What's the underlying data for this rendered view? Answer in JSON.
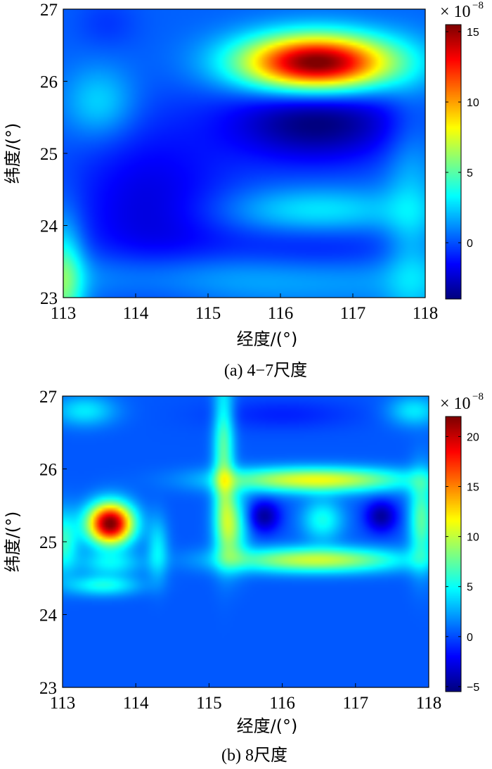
{
  "chart_data": [
    {
      "type": "heatmap",
      "caption": "(a) 4−7尺度",
      "xlabel": "经度/(°)",
      "ylabel": "纬度/(°)",
      "xlim": [
        113,
        118
      ],
      "ylim": [
        23,
        27
      ],
      "xticks": [
        "113",
        "114",
        "115",
        "116",
        "117",
        "118"
      ],
      "yticks": [
        "23",
        "24",
        "25",
        "26",
        "27"
      ],
      "colorbar": {
        "range": [
          -4,
          15.5
        ],
        "ticks": [
          "0",
          "5",
          "10",
          "15"
        ],
        "multiplier_base": "× 10",
        "multiplier_exp": "−8"
      },
      "features": [
        {
          "lon": 116.5,
          "lat": 26.25,
          "sx": 0.75,
          "sy": 0.28,
          "value": 16
        },
        {
          "lon": 116.5,
          "lat": 25.45,
          "sx": 0.85,
          "sy": 0.4,
          "value": -4.5
        },
        {
          "lon": 113.5,
          "lat": 25.7,
          "sx": 0.35,
          "sy": 0.35,
          "value": 2.5
        },
        {
          "lon": 113.6,
          "lat": 26.8,
          "sx": 0.3,
          "sy": 0.25,
          "value": -0.8
        },
        {
          "lon": 116.5,
          "lat": 24.2,
          "sx": 0.9,
          "sy": 0.22,
          "value": 2.8
        },
        {
          "lon": 113.0,
          "lat": 23.2,
          "sx": 0.2,
          "sy": 0.6,
          "value": 5.0
        },
        {
          "lon": 117.8,
          "lat": 24.0,
          "sx": 0.25,
          "sy": 1.2,
          "value": 2.0
        },
        {
          "lon": 115.5,
          "lat": 23.3,
          "sx": 2.5,
          "sy": 0.25,
          "value": 2.2
        },
        {
          "lon": 114.2,
          "lat": 24.2,
          "sx": 0.8,
          "sy": 0.9,
          "value": -2.5
        },
        {
          "lon": 116.5,
          "lat": 23.6,
          "sx": 1.1,
          "sy": 0.3,
          "value": -1.8
        }
      ]
    },
    {
      "type": "heatmap",
      "caption": "(b) 8尺度",
      "xlabel": "经度/(°)",
      "ylabel": "纬度/(°)",
      "xlim": [
        113,
        118
      ],
      "ylim": [
        23,
        27
      ],
      "xticks": [
        "113",
        "114",
        "115",
        "116",
        "117",
        "118"
      ],
      "yticks": [
        "23",
        "24",
        "25",
        "26",
        "27"
      ],
      "colorbar": {
        "range": [
          -5.5,
          22
        ],
        "ticks": [
          "−5",
          "0",
          "5",
          "10",
          "15",
          "20"
        ],
        "multiplier_base": "× 10",
        "multiplier_exp": "−8"
      },
      "features": [
        {
          "lon": 113.65,
          "lat": 25.25,
          "sx": 0.22,
          "sy": 0.2,
          "value": 22
        },
        {
          "lon": 113.65,
          "lat": 24.7,
          "sx": 0.3,
          "sy": 0.12,
          "value": 4
        },
        {
          "lon": 113.55,
          "lat": 24.4,
          "sx": 0.35,
          "sy": 0.1,
          "value": 5
        },
        {
          "lon": 114.3,
          "lat": 24.9,
          "sx": 0.1,
          "sy": 0.3,
          "value": 4
        },
        {
          "lon": 113.0,
          "lat": 25.0,
          "sx": 0.15,
          "sy": 0.3,
          "value": 6
        },
        {
          "lon": 116.45,
          "lat": 25.85,
          "sx": 0.9,
          "sy": 0.12,
          "value": 11
        },
        {
          "lon": 116.45,
          "lat": 24.75,
          "sx": 0.85,
          "sy": 0.12,
          "value": 10
        },
        {
          "lon": 115.75,
          "lat": 25.35,
          "sx": 0.15,
          "sy": 0.15,
          "value": -5
        },
        {
          "lon": 117.35,
          "lat": 25.35,
          "sx": 0.15,
          "sy": 0.15,
          "value": -5
        },
        {
          "lon": 116.55,
          "lat": 25.3,
          "sx": 0.2,
          "sy": 0.2,
          "value": 5
        },
        {
          "lon": 115.2,
          "lat": 26.2,
          "sx": 0.1,
          "sy": 0.75,
          "value": 7
        },
        {
          "lon": 115.3,
          "lat": 25.2,
          "sx": 0.15,
          "sy": 0.35,
          "value": 8
        },
        {
          "lon": 117.9,
          "lat": 25.3,
          "sx": 0.12,
          "sy": 0.45,
          "value": 7
        },
        {
          "lon": 113.3,
          "lat": 26.8,
          "sx": 0.3,
          "sy": 0.15,
          "value": 4
        },
        {
          "lon": 117.8,
          "lat": 26.8,
          "sx": 0.25,
          "sy": 0.15,
          "value": 4
        },
        {
          "lon": 116.0,
          "lat": 26.75,
          "sx": 0.7,
          "sy": 0.15,
          "value": -1.5
        }
      ]
    }
  ]
}
